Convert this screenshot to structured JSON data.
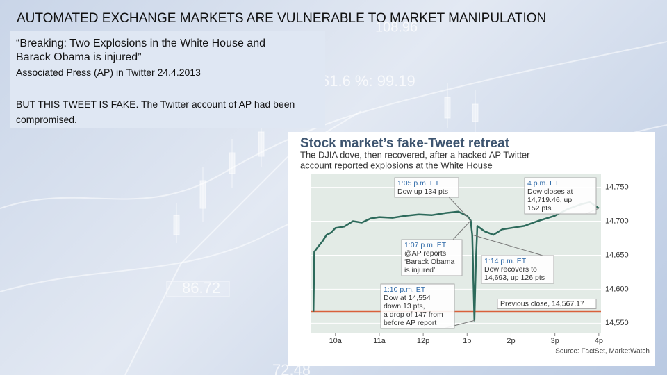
{
  "title": "AUTOMATED EXCHANGE MARKETS ARE VULNERABLE TO MARKET MANIPULATION",
  "quote": [
    "“Breaking: Two Explosions in the White House and",
    "Barack Obama is injured”"
  ],
  "source": "Associated Press (AP) in Twitter 24.4.2013",
  "note": "BUT THIS TWEET IS FAKE. The Twitter account of AP had been compromised.",
  "background_labels": [
    "108.96",
    "61.6 %:  99.19",
    "86.72",
    "72.48"
  ],
  "chart_data": {
    "type": "line",
    "title": "Stock market’s fake-Tweet retreat",
    "subtitle": [
      "The DJIA dove, then recovered, after a hacked AP Twitter",
      "account reported explosions at the White House"
    ],
    "source": "Source: FactSet, MarketWatch",
    "color": "#2d6a5b",
    "x": [
      9.5,
      9.52,
      9.6,
      9.7,
      9.8,
      9.9,
      10,
      10.2,
      10.4,
      10.6,
      10.8,
      11,
      11.3,
      11.6,
      11.9,
      12.2,
      12.5,
      12.8,
      13,
      13.083,
      13.1,
      13.117,
      13.167,
      13.2,
      13.233,
      13.4,
      13.6,
      13.8,
      14,
      14.3,
      14.6,
      15,
      15.3,
      15.6,
      15.8,
      16
    ],
    "values": [
      14567,
      14655,
      14662,
      14670,
      14680,
      14683,
      14690,
      14692,
      14700,
      14698,
      14704,
      14706,
      14705,
      14708,
      14710,
      14709,
      14712,
      14714,
      14708,
      14701,
      14690,
      14680,
      14554,
      14640,
      14693,
      14685,
      14680,
      14688,
      14690,
      14693,
      14700,
      14708,
      14718,
      14725,
      14728,
      14719
    ],
    "xlim": [
      9.45,
      16.05
    ],
    "ylim": [
      14535,
      14770
    ],
    "xticks": [
      {
        "value": 10,
        "label": "10a"
      },
      {
        "value": 11,
        "label": "11a"
      },
      {
        "value": 12,
        "label": "12p"
      },
      {
        "value": 13,
        "label": "1p"
      },
      {
        "value": 14,
        "label": "2p"
      },
      {
        "value": 15,
        "label": "3p"
      },
      {
        "value": 16,
        "label": "4p"
      }
    ],
    "yticks": [
      {
        "value": 14550,
        "label": "14,550"
      },
      {
        "value": 14600,
        "label": "14,600"
      },
      {
        "value": 14650,
        "label": "14,650"
      },
      {
        "value": 14700,
        "label": "14,700"
      },
      {
        "value": 14750,
        "label": "14,750"
      }
    ],
    "grid": true,
    "reference_line": {
      "value": 14567.17,
      "label": "Previous close, 14,567.17",
      "color": "#d9603a"
    },
    "annotations": [
      {
        "time": "1:05 p.m. ET",
        "lines": [
          "Dow up 134 pts"
        ]
      },
      {
        "time": "4 p.m. ET",
        "lines": [
          "Dow closes at",
          "14,719.46, up",
          "152 pts"
        ]
      },
      {
        "time": "1:07 p.m. ET",
        "lines": [
          "@AP reports",
          "‘Barack Obama",
          "is injured’"
        ]
      },
      {
        "time": "1:14 p.m. ET",
        "lines": [
          "Dow recovers to",
          "14,693, up 126 pts"
        ]
      },
      {
        "time": "1:10 p.m. ET",
        "lines": [
          "Dow at 14,554",
          "down 13 pts,",
          "a drop of 147 from",
          "before AP report"
        ]
      }
    ]
  }
}
